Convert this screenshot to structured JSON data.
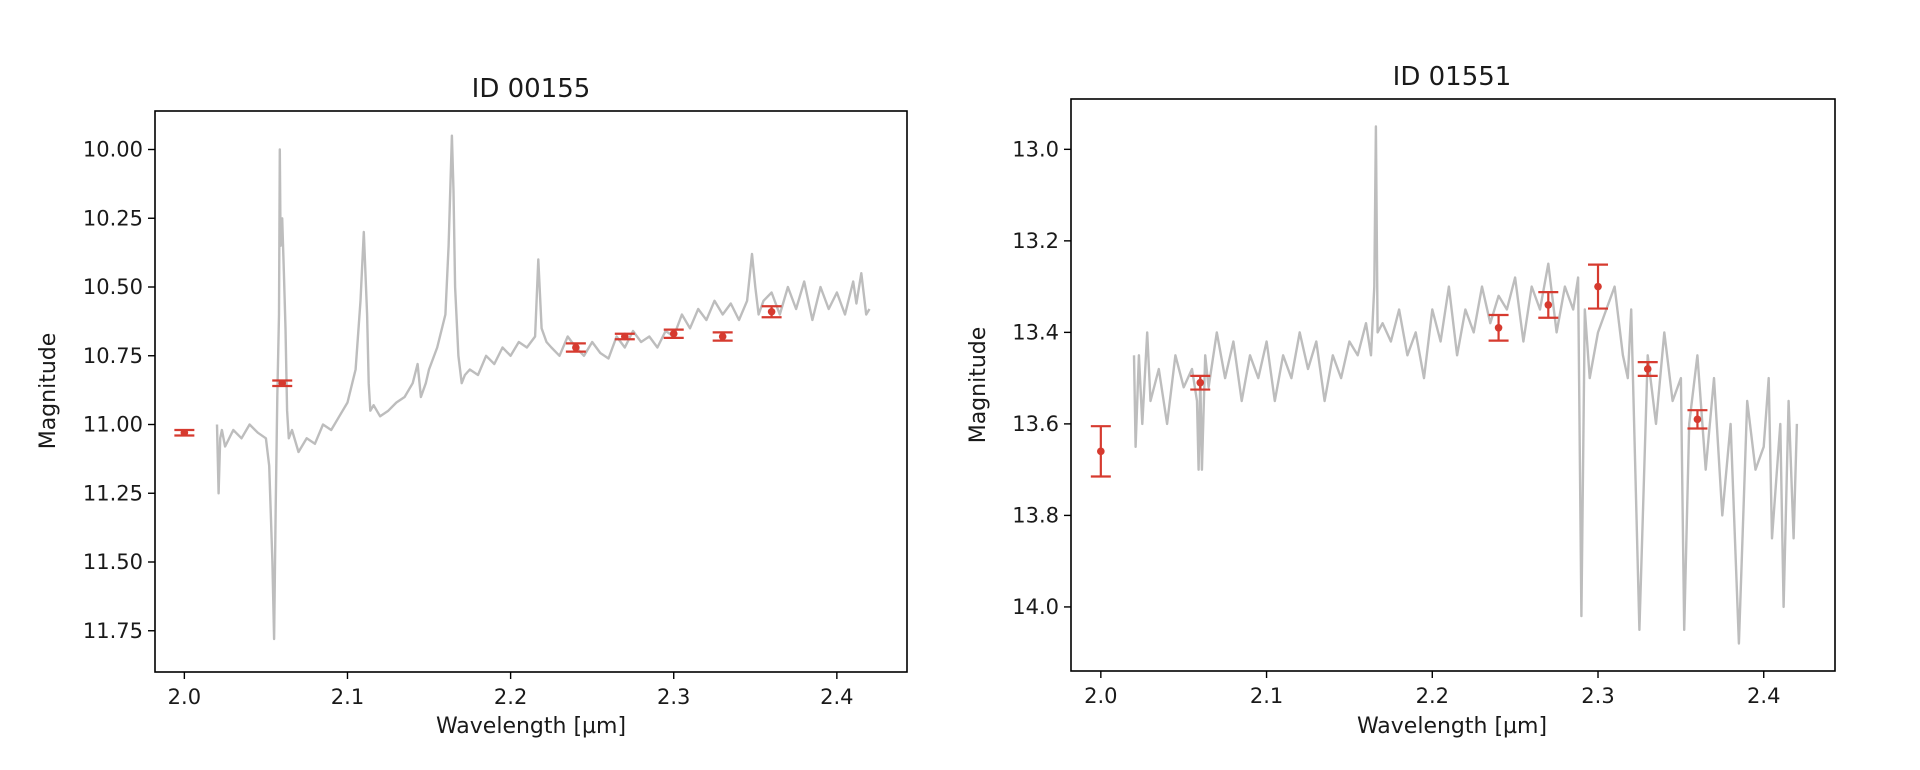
{
  "chart_data": [
    {
      "type": "line",
      "title": "ID 00155",
      "xlabel": "Wavelength [µm]",
      "ylabel": "Magnitude",
      "xlim": [
        1.982,
        2.443
      ],
      "ylim": [
        11.9,
        9.86
      ],
      "y_inverted": true,
      "x_ticks": [
        2.0,
        2.1,
        2.2,
        2.3,
        2.4
      ],
      "x_tick_labels": [
        "2.0",
        "2.1",
        "2.2",
        "2.3",
        "2.4"
      ],
      "y_ticks": [
        10.0,
        10.25,
        10.5,
        10.75,
        11.0,
        11.25,
        11.5,
        11.75
      ],
      "y_tick_labels": [
        "10.00",
        "10.25",
        "10.50",
        "10.75",
        "11.00",
        "11.25",
        "11.50",
        "11.75"
      ],
      "grid": false,
      "spectrum": {
        "color": "#bdbdbd",
        "x": [
          2.02,
          2.021,
          2.022,
          2.023,
          2.025,
          2.03,
          2.035,
          2.04,
          2.045,
          2.05,
          2.052,
          2.054,
          2.055,
          2.056,
          2.057,
          2.058,
          2.0585,
          2.059,
          2.06,
          2.061,
          2.062,
          2.063,
          2.064,
          2.066,
          2.07,
          2.075,
          2.08,
          2.085,
          2.09,
          2.095,
          2.1,
          2.105,
          2.108,
          2.11,
          2.112,
          2.113,
          2.114,
          2.116,
          2.12,
          2.125,
          2.13,
          2.135,
          2.14,
          2.143,
          2.145,
          2.148,
          2.15,
          2.155,
          2.16,
          2.162,
          2.164,
          2.165,
          2.166,
          2.168,
          2.17,
          2.172,
          2.175,
          2.18,
          2.185,
          2.19,
          2.195,
          2.2,
          2.205,
          2.21,
          2.215,
          2.217,
          2.219,
          2.222,
          2.225,
          2.23,
          2.235,
          2.24,
          2.245,
          2.25,
          2.255,
          2.26,
          2.265,
          2.27,
          2.275,
          2.28,
          2.285,
          2.29,
          2.295,
          2.3,
          2.305,
          2.31,
          2.315,
          2.32,
          2.325,
          2.33,
          2.335,
          2.34,
          2.345,
          2.348,
          2.35,
          2.352,
          2.355,
          2.36,
          2.365,
          2.37,
          2.375,
          2.38,
          2.385,
          2.39,
          2.395,
          2.4,
          2.405,
          2.41,
          2.412,
          2.415,
          2.418,
          2.42
        ],
        "y": [
          11.0,
          11.25,
          11.05,
          11.02,
          11.08,
          11.02,
          11.05,
          11.0,
          11.03,
          11.05,
          11.15,
          11.5,
          11.78,
          11.3,
          10.9,
          10.6,
          10.0,
          10.35,
          10.25,
          10.45,
          10.65,
          10.95,
          11.05,
          11.02,
          11.1,
          11.05,
          11.07,
          11.0,
          11.02,
          10.97,
          10.92,
          10.8,
          10.55,
          10.3,
          10.6,
          10.85,
          10.95,
          10.93,
          10.97,
          10.95,
          10.92,
          10.9,
          10.85,
          10.78,
          10.9,
          10.85,
          10.8,
          10.72,
          10.6,
          10.35,
          9.95,
          10.15,
          10.5,
          10.75,
          10.85,
          10.82,
          10.8,
          10.82,
          10.75,
          10.78,
          10.72,
          10.75,
          10.7,
          10.72,
          10.68,
          10.4,
          10.65,
          10.7,
          10.72,
          10.75,
          10.68,
          10.72,
          10.75,
          10.7,
          10.74,
          10.76,
          10.68,
          10.72,
          10.66,
          10.7,
          10.68,
          10.72,
          10.66,
          10.68,
          10.6,
          10.65,
          10.58,
          10.62,
          10.55,
          10.6,
          10.56,
          10.62,
          10.55,
          10.38,
          10.5,
          10.6,
          10.55,
          10.52,
          10.6,
          10.5,
          10.58,
          10.48,
          10.62,
          10.5,
          10.58,
          10.52,
          10.6,
          10.48,
          10.56,
          10.45,
          10.6,
          10.58
        ]
      },
      "photometry": {
        "color": "#d63a2f",
        "x": [
          2.0,
          2.06,
          2.24,
          2.27,
          2.3,
          2.33,
          2.36
        ],
        "y": [
          11.03,
          10.85,
          10.72,
          10.68,
          10.67,
          10.68,
          10.59
        ],
        "yerr": [
          0.01,
          0.01,
          0.015,
          0.01,
          0.015,
          0.015,
          0.02
        ]
      }
    },
    {
      "type": "line",
      "title": "ID 01551",
      "xlabel": "Wavelength [µm]",
      "ylabel": "Magnitude",
      "xlim": [
        1.982,
        2.443
      ],
      "ylim": [
        14.14,
        12.89
      ],
      "y_inverted": true,
      "x_ticks": [
        2.0,
        2.1,
        2.2,
        2.3,
        2.4
      ],
      "x_tick_labels": [
        "2.0",
        "2.1",
        "2.2",
        "2.3",
        "2.4"
      ],
      "y_ticks": [
        13.0,
        13.2,
        13.4,
        13.6,
        13.8,
        14.0
      ],
      "y_tick_labels": [
        "13.0",
        "13.2",
        "13.4",
        "13.6",
        "13.8",
        "14.0"
      ],
      "grid": false,
      "spectrum": {
        "color": "#bdbdbd",
        "x": [
          2.02,
          2.021,
          2.023,
          2.025,
          2.028,
          2.03,
          2.035,
          2.04,
          2.045,
          2.05,
          2.055,
          2.058,
          2.059,
          2.06,
          2.061,
          2.063,
          2.065,
          2.07,
          2.075,
          2.08,
          2.085,
          2.09,
          2.095,
          2.1,
          2.105,
          2.11,
          2.115,
          2.12,
          2.125,
          2.13,
          2.135,
          2.14,
          2.145,
          2.15,
          2.155,
          2.16,
          2.163,
          2.165,
          2.166,
          2.167,
          2.17,
          2.175,
          2.18,
          2.185,
          2.19,
          2.195,
          2.2,
          2.205,
          2.21,
          2.215,
          2.22,
          2.225,
          2.23,
          2.235,
          2.24,
          2.245,
          2.25,
          2.255,
          2.26,
          2.265,
          2.27,
          2.275,
          2.28,
          2.285,
          2.288,
          2.29,
          2.292,
          2.295,
          2.3,
          2.305,
          2.31,
          2.315,
          2.318,
          2.32,
          2.325,
          2.33,
          2.335,
          2.34,
          2.345,
          2.35,
          2.352,
          2.355,
          2.36,
          2.365,
          2.37,
          2.375,
          2.38,
          2.385,
          2.39,
          2.395,
          2.4,
          2.403,
          2.405,
          2.41,
          2.412,
          2.415,
          2.418,
          2.42
        ],
        "y": [
          13.45,
          13.65,
          13.45,
          13.6,
          13.4,
          13.55,
          13.48,
          13.6,
          13.45,
          13.52,
          13.48,
          13.55,
          13.7,
          13.5,
          13.7,
          13.45,
          13.52,
          13.4,
          13.5,
          13.42,
          13.55,
          13.45,
          13.5,
          13.42,
          13.55,
          13.45,
          13.5,
          13.4,
          13.48,
          13.42,
          13.55,
          13.45,
          13.5,
          13.42,
          13.45,
          13.38,
          13.45,
          13.3,
          12.95,
          13.4,
          13.38,
          13.42,
          13.35,
          13.45,
          13.4,
          13.5,
          13.35,
          13.42,
          13.3,
          13.45,
          13.35,
          13.4,
          13.3,
          13.38,
          13.32,
          13.35,
          13.28,
          13.42,
          13.3,
          13.35,
          13.25,
          13.4,
          13.3,
          13.35,
          13.28,
          14.02,
          13.35,
          13.5,
          13.4,
          13.35,
          13.3,
          13.45,
          13.5,
          13.35,
          14.05,
          13.45,
          13.6,
          13.4,
          13.55,
          13.5,
          14.05,
          13.6,
          13.45,
          13.7,
          13.5,
          13.8,
          13.6,
          14.08,
          13.55,
          13.7,
          13.65,
          13.5,
          13.85,
          13.6,
          14.0,
          13.55,
          13.85,
          13.6
        ]
      },
      "photometry": {
        "color": "#d63a2f",
        "x": [
          2.0,
          2.06,
          2.24,
          2.27,
          2.3,
          2.33,
          2.36
        ],
        "y": [
          13.66,
          13.51,
          13.39,
          13.34,
          13.3,
          13.48,
          13.59
        ],
        "yerr": [
          0.055,
          0.015,
          0.028,
          0.028,
          0.048,
          0.015,
          0.02
        ]
      }
    }
  ]
}
